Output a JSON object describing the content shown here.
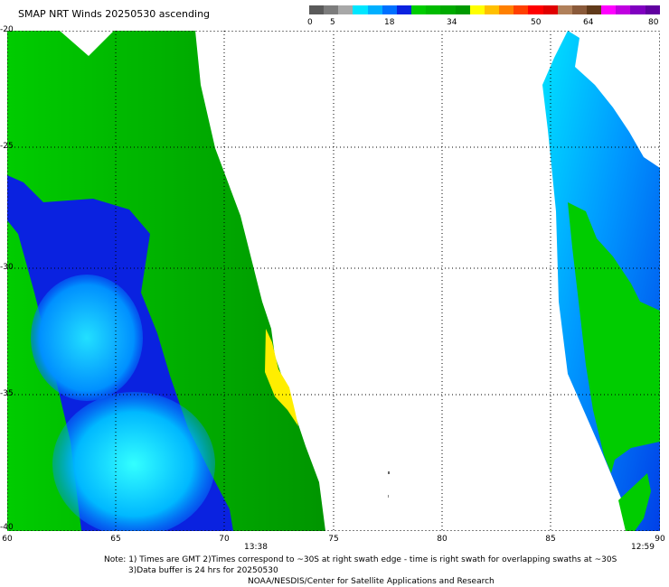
{
  "title": "SMAP NRT Winds 20250530 ascending",
  "colorbar": {
    "labels": [
      "0",
      "5",
      "18",
      "34",
      "50",
      "64",
      "80"
    ],
    "segments": [
      "#5a5a5a",
      "#7c7c7c",
      "#a8a8a8",
      "#00e6ff",
      "#00b0ff",
      "#0070ff",
      "#0a22e0",
      "#00cc00",
      "#00bb00",
      "#00aa00",
      "#009a00",
      "#ffff00",
      "#ffc000",
      "#ff8000",
      "#ff4000",
      "#ff0000",
      "#e00000",
      "#b0805a",
      "#8a5a3a",
      "#603a1a",
      "#ff00ff",
      "#c000e0",
      "#8000c0",
      "#6000a0"
    ]
  },
  "map": {
    "lon_range": [
      60,
      90
    ],
    "lat_range": [
      -20,
      -40
    ],
    "xticks": [
      "60",
      "65",
      "70",
      "75",
      "80",
      "85",
      "90"
    ],
    "yticks": [
      "-20",
      "-25",
      "-30",
      "-35",
      "-40"
    ],
    "swath_times": [
      "13:38",
      "12:59"
    ]
  },
  "notes": {
    "line1": "Note: 1) Times are GMT 2)Times correspond to ~30S at right swath edge - time is right swath for overlapping swaths at ~30S",
    "line2": "3)Data buffer is 24 hrs for 20250530",
    "credit": "NOAA/NESDIS/Center for Satellite Applications and Research"
  }
}
